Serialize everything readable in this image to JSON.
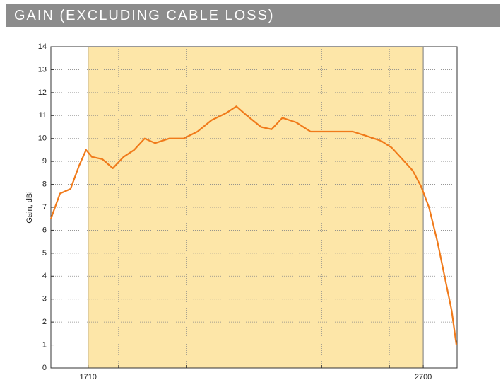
{
  "chart_data": {
    "type": "line",
    "title": "GAIN (EXCLUDING CABLE LOSS)",
    "ylabel": "Gain, dBi",
    "x": [
      1600,
      1627,
      1658,
      1683,
      1704,
      1721,
      1752,
      1783,
      1815,
      1846,
      1877,
      1908,
      1950,
      1992,
      2033,
      2075,
      2117,
      2148,
      2179,
      2221,
      2252,
      2284,
      2325,
      2367,
      2409,
      2450,
      2492,
      2534,
      2575,
      2607,
      2638,
      2669,
      2694,
      2717,
      2742,
      2763,
      2784,
      2798
    ],
    "series": [
      {
        "color": "#f07a1a",
        "values": [
          6.5,
          7.6,
          7.8,
          8.8,
          9.5,
          9.2,
          9.1,
          8.7,
          9.2,
          9.5,
          10.0,
          9.8,
          10.0,
          10.0,
          10.3,
          10.8,
          11.1,
          11.4,
          11.0,
          10.5,
          10.4,
          10.9,
          10.7,
          10.3,
          10.3,
          10.3,
          10.3,
          10.1,
          9.9,
          9.6,
          9.1,
          8.6,
          7.9,
          7.0,
          5.5,
          4.0,
          2.5,
          1.0
        ]
      }
    ],
    "xlim": [
      1600,
      2800
    ],
    "xticks": [
      1710,
      2700
    ],
    "xgrid": [
      1800,
      2000,
      2200,
      2400,
      2600
    ],
    "ylim": [
      0,
      14
    ],
    "yticks": [
      0,
      1,
      2,
      3,
      4,
      5,
      6,
      7,
      8,
      9,
      10,
      11,
      12,
      13,
      14
    ],
    "grid": true,
    "band": [
      1710,
      2700
    ],
    "band_color": "#fde6a8"
  }
}
